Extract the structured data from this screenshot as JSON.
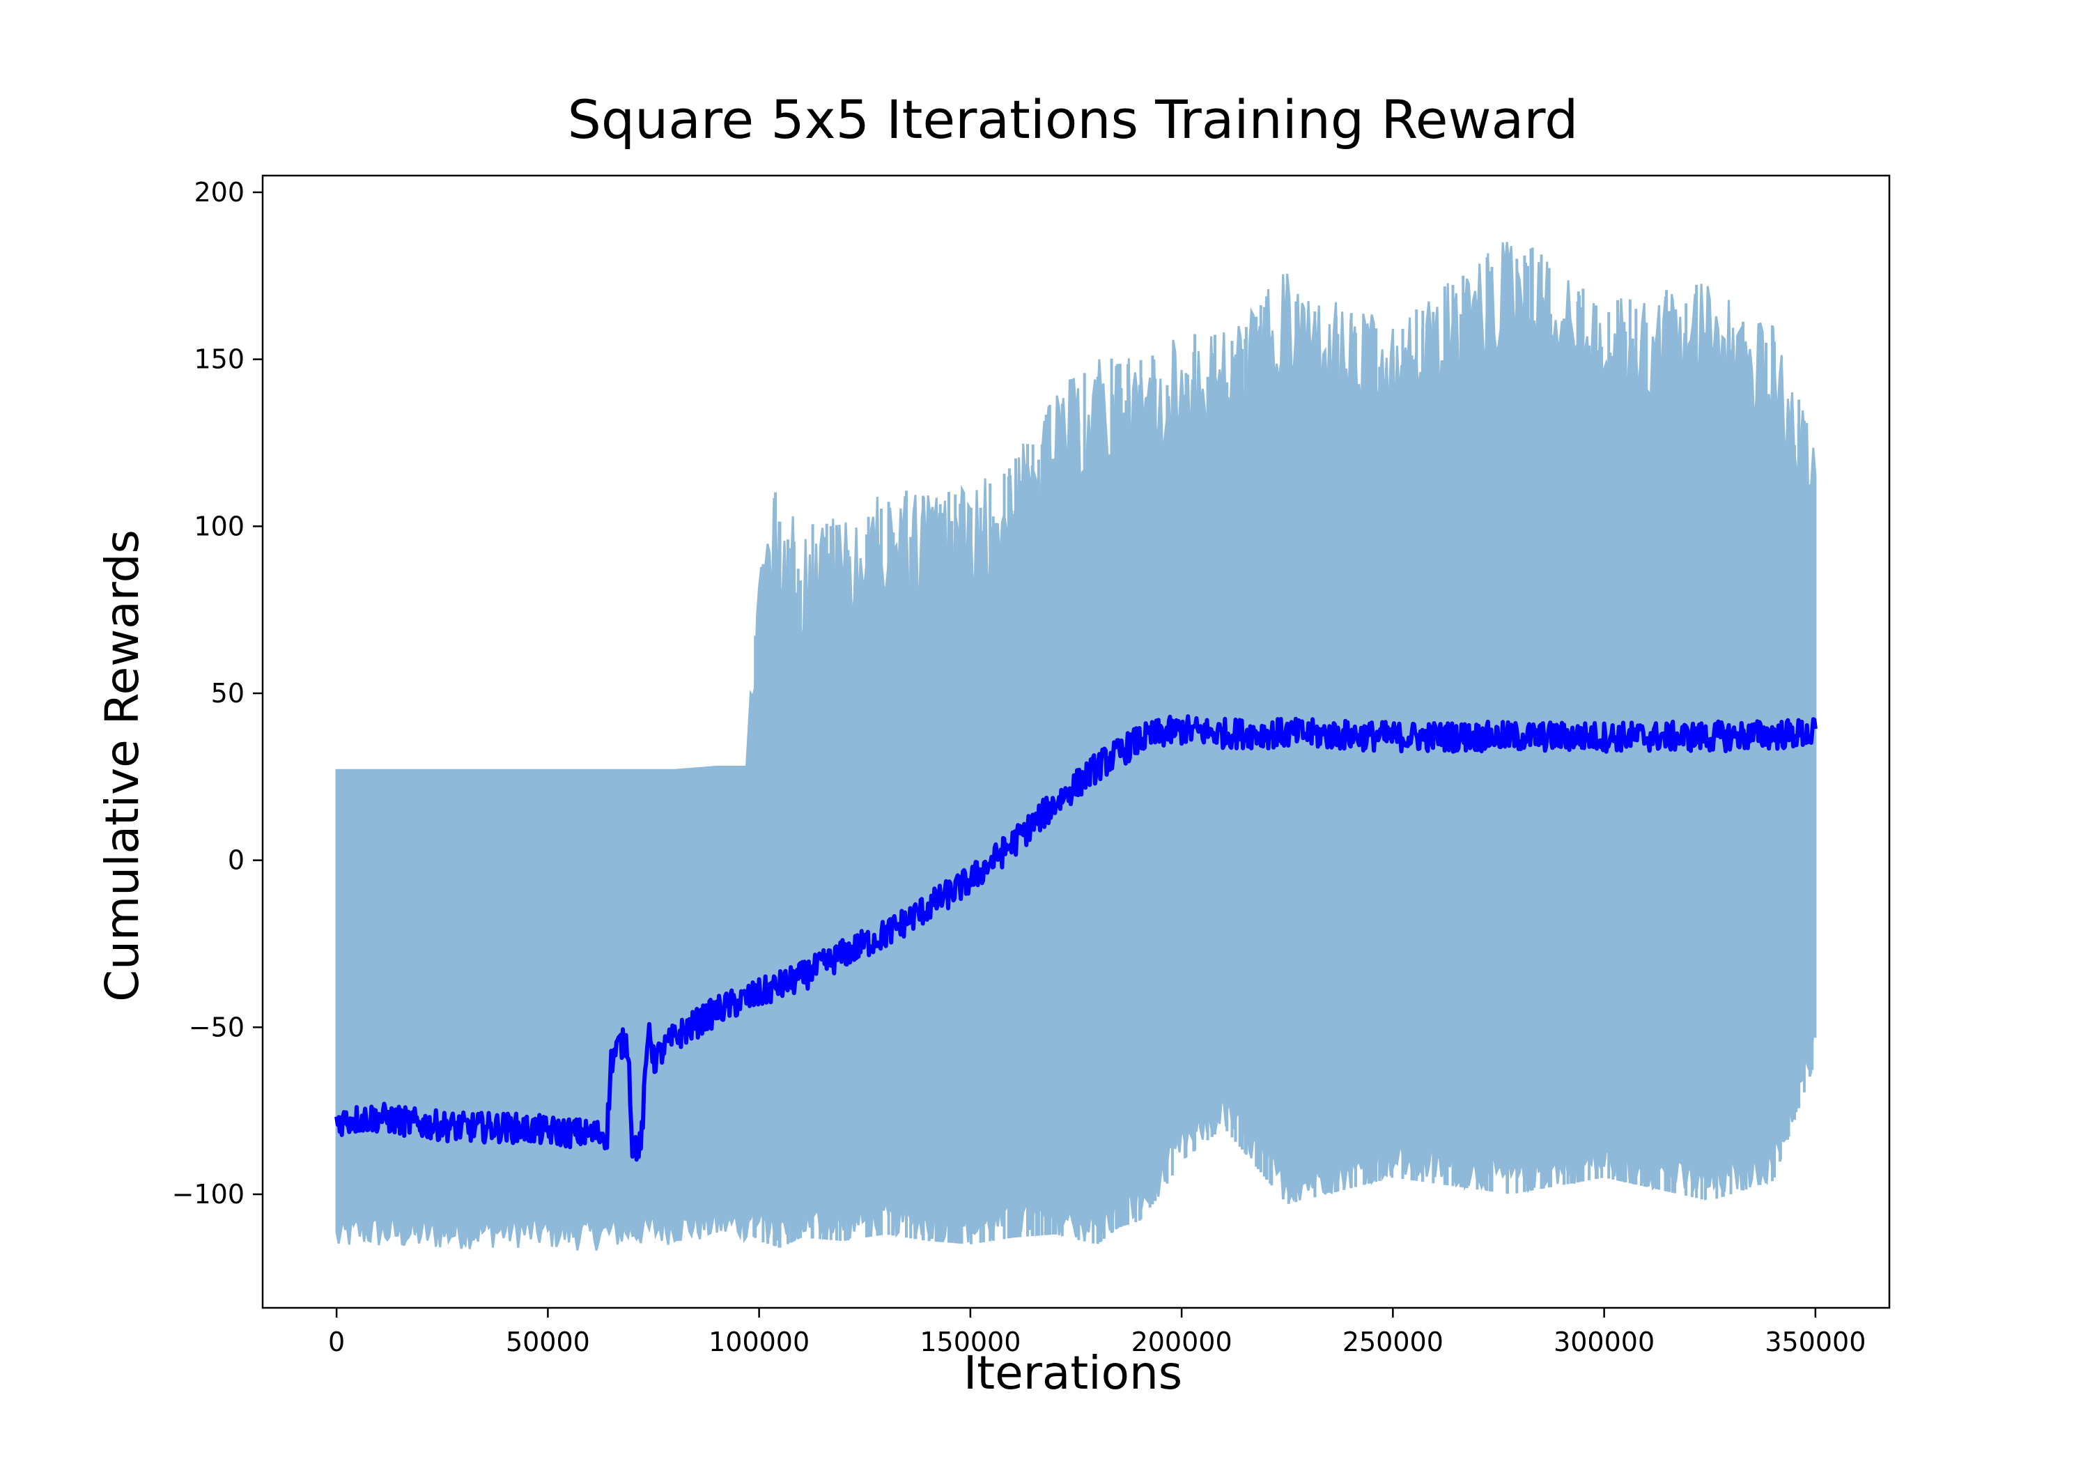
{
  "chart_data": {
    "type": "line",
    "title": "Square 5x5 Iterations Training Reward",
    "xlabel": "Iterations",
    "ylabel": "Cumulative Rewards",
    "xlim": [
      -17500,
      367500
    ],
    "ylim": [
      -134,
      205
    ],
    "xticks": [
      0,
      50000,
      100000,
      150000,
      200000,
      250000,
      300000,
      350000
    ],
    "xtick_labels": [
      "0",
      "50000",
      "100000",
      "150000",
      "200000",
      "250000",
      "300000",
      "350000"
    ],
    "yticks": [
      -100,
      -50,
      0,
      50,
      100,
      150,
      200
    ],
    "ytick_labels": [
      "−100",
      "−50",
      "0",
      "50",
      "100",
      "150",
      "200"
    ],
    "grid": false,
    "legend": "none",
    "series": [
      {
        "role": "raw episode reward (band)",
        "color": "#8fb9d8",
        "x": [
          0,
          5000,
          20000,
          40000,
          60000,
          80000,
          90000,
          97000,
          98000,
          100000,
          105000,
          110000,
          120000,
          130000,
          140000,
          150000,
          160000,
          170000,
          180000,
          185000,
          190000,
          195000,
          200000,
          210000,
          225000,
          250000,
          278000,
          300000,
          325000,
          340000,
          350000
        ],
        "upper": [
          27,
          27,
          27,
          27,
          27,
          27,
          28,
          28,
          50,
          97,
          115,
          100,
          105,
          110,
          112,
          113,
          120,
          140,
          151,
          150,
          152,
          155,
          157,
          160,
          177,
          160,
          189,
          167,
          175,
          160,
          124
        ],
        "lower": [
          -118,
          -116,
          -117,
          -116,
          -117,
          -115,
          -114,
          -114,
          -112,
          -114,
          -116,
          -113,
          -114,
          -112,
          -114,
          -115,
          -113,
          -112,
          -115,
          -110,
          -108,
          -100,
          -90,
          -80,
          -103,
          -95,
          -100,
          -95,
          -102,
          -96,
          -60
        ]
      },
      {
        "role": "moving average reward",
        "color": "#0000ff",
        "x": [
          0,
          10000,
          20000,
          30000,
          40000,
          50000,
          60000,
          64000,
          65000,
          67000,
          69000,
          70000,
          72000,
          74000,
          75000,
          80000,
          90000,
          100000,
          110000,
          120000,
          130000,
          140000,
          150000,
          160000,
          170000,
          180000,
          190000,
          195000,
          200000,
          210000,
          225000,
          250000,
          275000,
          300000,
          325000,
          350000
        ],
        "y": [
          -78,
          -77,
          -79,
          -80,
          -80,
          -81,
          -82,
          -82,
          -60,
          -55,
          -55,
          -85,
          -86,
          -48,
          -60,
          -53,
          -45,
          -40,
          -35,
          -28,
          -22,
          -14,
          -6,
          5,
          17,
          28,
          36,
          38,
          39,
          38,
          38,
          37,
          37,
          37,
          37,
          38
        ]
      }
    ]
  }
}
